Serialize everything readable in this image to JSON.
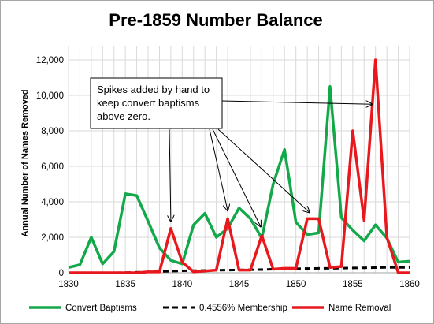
{
  "chart_data": {
    "type": "line",
    "title": "Pre-1859 Number Balance",
    "ylabel": "Annual Number of Names Removed",
    "xlabel": "",
    "xlim": [
      1830,
      1860
    ],
    "ylim": [
      0,
      12800
    ],
    "x_ticks": [
      1830,
      1835,
      1840,
      1845,
      1850,
      1855,
      1860
    ],
    "y_ticks": [
      0,
      2000,
      4000,
      6000,
      8000,
      10000,
      12000
    ],
    "y_tick_labels": [
      "0",
      "2,000",
      "4,000",
      "6,000",
      "8,000",
      "10,000",
      "12,000"
    ],
    "grid": true,
    "legend_position": "bottom",
    "x": [
      1830,
      1831,
      1832,
      1833,
      1834,
      1835,
      1836,
      1837,
      1838,
      1839,
      1840,
      1841,
      1842,
      1843,
      1844,
      1845,
      1846,
      1847,
      1848,
      1849,
      1850,
      1851,
      1852,
      1853,
      1854,
      1855,
      1856,
      1857,
      1858,
      1859,
      1860
    ],
    "series": [
      {
        "name": "Convert Baptisms",
        "color": "#13a84a",
        "dash": "solid",
        "values": [
          300,
          450,
          2000,
          500,
          1200,
          4450,
          4350,
          2900,
          1400,
          700,
          500,
          2700,
          3350,
          2000,
          2500,
          3650,
          3050,
          1950,
          5000,
          6950,
          2850,
          2150,
          2250,
          10500,
          3100,
          2400,
          1800,
          2700,
          1950,
          600,
          650
        ]
      },
      {
        "name": "0.4556% Membership",
        "color": "#000000",
        "dash": "dashed",
        "values": [
          0,
          0,
          0,
          0,
          0,
          10,
          30,
          50,
          70,
          90,
          110,
          120,
          130,
          140,
          150,
          160,
          170,
          180,
          200,
          220,
          230,
          240,
          250,
          250,
          260,
          270,
          280,
          290,
          300,
          300,
          300
        ]
      },
      {
        "name": "Name Removal",
        "color": "#e8181d",
        "dash": "solid",
        "values": [
          0,
          0,
          0,
          0,
          0,
          0,
          0,
          50,
          50,
          2500,
          600,
          50,
          100,
          150,
          3050,
          150,
          150,
          2100,
          200,
          250,
          250,
          3050,
          3050,
          300,
          350,
          8000,
          2950,
          12000,
          2000,
          0,
          0
        ]
      }
    ],
    "annotation": {
      "lines": [
        "Spikes added by hand to",
        "keep convert baptisms",
        "above zero."
      ],
      "arrow_targets": [
        {
          "x": 1839,
          "y": 2900
        },
        {
          "x": 1844,
          "y": 3500
        },
        {
          "x": 1846.9,
          "y": 2600
        },
        {
          "x": 1851.2,
          "y": 3400
        },
        {
          "x": 1856.7,
          "y": 9500
        }
      ]
    }
  }
}
